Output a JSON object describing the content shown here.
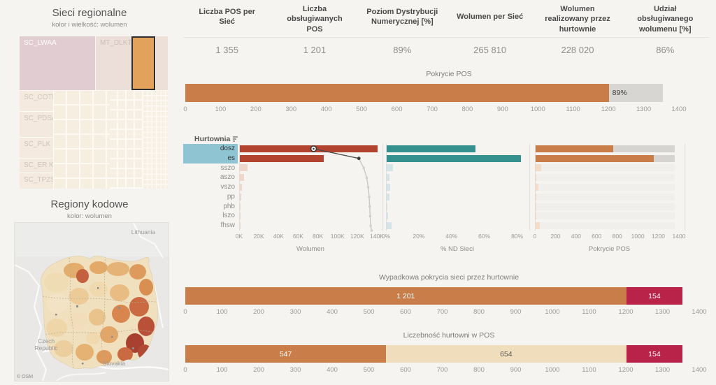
{
  "colors": {
    "orange": "#c97e4a",
    "pale_orange": "#f3ddc9",
    "dark_red": "#b2432f",
    "pale_red": "#f0d5cb",
    "teal": "#34918e",
    "pale_teal": "#d3e5e6",
    "crimson": "#ba2349",
    "beige": "#f0ddbb",
    "gray_segment": "#d8d6d3",
    "track_dark": "#d6d4d1",
    "track_light": "#f0efec",
    "highlight_blue": "#8fc5d2"
  },
  "treemap": {
    "title": "Sieci regionalne",
    "subtitle": "kolor i wielkość: wolumen",
    "cells": [
      {
        "label": "SC_LWAA",
        "color": "#e1ccd1",
        "text_color": "#ffffff"
      },
      {
        "label": "MT_DLKTS",
        "color": "#ecdfd9",
        "text_color": "#c9beb6"
      },
      {
        "label": "",
        "color": "#e3a25b",
        "text_color": "#000000",
        "highlighted": true
      },
      {
        "label": "SC_COTN",
        "color": "#f4eadf",
        "text_color": "#cfc5b8"
      },
      {
        "label": "SC_PDSA",
        "color": "#f3e9de",
        "text_color": "#cfc5b8"
      },
      {
        "label": "SC_PLK R",
        "color": "#f4eadf",
        "text_color": "#cfc5b8"
      },
      {
        "label": "SC_ER KE",
        "color": "#f3e9de",
        "text_color": "#cfc5b8"
      },
      {
        "label": "SC_TPZSK",
        "color": "#f4eadf",
        "text_color": "#cfc5b8"
      }
    ]
  },
  "map": {
    "title": "Regiony kodowe",
    "subtitle": "kolor: wolumen",
    "neighbor_labels": [
      "Lithuania",
      "Czech Republic",
      "Slovakia"
    ],
    "attribution": "© OSM"
  },
  "kpis": [
    {
      "label": "Liczba POS per Sieć",
      "value": "1 355"
    },
    {
      "label": "Liczba obsługiwanych POS",
      "value": "1 201"
    },
    {
      "label": "Poziom Dystrybucji Numerycznej [%]",
      "value": "89%"
    },
    {
      "label": "Wolumen per Sieć",
      "value": "265 810"
    },
    {
      "label": "Wolumen realizowany przez hurtownie",
      "value": "228 020"
    },
    {
      "label": "Udział obsługiwanego wolumenu [%]",
      "value": "86%"
    }
  ],
  "chart_data": [
    {
      "id": "pokrycie-pos-total",
      "type": "bar",
      "title": "Pokrycie POS",
      "axis": {
        "min": 0,
        "max": 1400,
        "step": 100
      },
      "total": 1355,
      "segments": [
        {
          "name": "pokryte",
          "value": 1201,
          "color": "#c97e4a"
        },
        {
          "name": "niepokryte",
          "value": 154,
          "color": "#d8d6d3",
          "label": "89%",
          "label_color": "#3f3f3f",
          "label_align": "left"
        }
      ]
    },
    {
      "id": "hurtownie",
      "type": "bar",
      "header": "Hurtownia",
      "categories": [
        "dosz",
        "es",
        "sszo",
        "aszo",
        "vszo",
        "pp",
        "phb",
        "lszo",
        "fhsw"
      ],
      "highlighted": [
        "dosz",
        "es"
      ],
      "panels": [
        {
          "title": "Wolumen",
          "scale_max": 145000,
          "axis_ticks": [
            {
              "v": 0,
              "t": "0K"
            },
            {
              "v": 20000,
              "t": "20K"
            },
            {
              "v": 40000,
              "t": "40K"
            },
            {
              "v": 60000,
              "t": "60K"
            },
            {
              "v": 80000,
              "t": "80K"
            },
            {
              "v": 100000,
              "t": "100K"
            },
            {
              "v": 120000,
              "t": "120K"
            },
            {
              "v": 140000,
              "t": "140K"
            }
          ],
          "values": [
            140000,
            85000,
            8000,
            4500,
            2000,
            1200,
            500,
            900,
            600
          ]
        },
        {
          "title": "% ND Sieci",
          "scale_max": 87,
          "axis_ticks": [
            {
              "v": 0,
              "t": "0%"
            },
            {
              "v": 20,
              "t": "20%"
            },
            {
              "v": 40,
              "t": "40%"
            },
            {
              "v": 60,
              "t": "60%"
            },
            {
              "v": 80,
              "t": "80%"
            }
          ],
          "values": [
            54,
            82,
            4,
            1.5,
            2,
            1.5,
            0.3,
            1,
            3
          ]
        },
        {
          "title": "Pokrycie POS",
          "scale_max": 1400,
          "track_value": 1355,
          "axis_ticks": [
            {
              "v": 0,
              "t": "0"
            },
            {
              "v": 200,
              "t": "200"
            },
            {
              "v": 400,
              "t": "400"
            },
            {
              "v": 600,
              "t": "600"
            },
            {
              "v": 800,
              "t": "800"
            },
            {
              "v": 1000,
              "t": "1000"
            },
            {
              "v": 1200,
              "t": "1200"
            },
            {
              "v": 1400,
              "t": "1400"
            }
          ],
          "values": [
            755,
            1146,
            55,
            10,
            25,
            10,
            3,
            2,
            40
          ]
        }
      ],
      "pareto_line_points_k": [
        75,
        121,
        126,
        129,
        130.5,
        131.5,
        132,
        132.5,
        133,
        134
      ]
    },
    {
      "id": "wypadkowa",
      "type": "bar",
      "title": "Wypadkowa pokrycia sieci przez hurtownie",
      "axis": {
        "min": 0,
        "max": 1400,
        "step": 100
      },
      "total": 1355,
      "segments": [
        {
          "name": "obsluzone",
          "value": 1201,
          "color": "#c97e4a",
          "label": "1 201",
          "label_color": "#ffffff"
        },
        {
          "name": "nieobsluzone",
          "value": 154,
          "color": "#ba2349",
          "label": "154",
          "label_color": "#ffffff"
        }
      ]
    },
    {
      "id": "liczebnosc",
      "type": "bar",
      "title": "Liczebność hurtowni w POS",
      "axis": {
        "min": 0,
        "max": 1400,
        "step": 100
      },
      "total": 1355,
      "segments": [
        {
          "name": "wielu-hurtownikow",
          "value": 547,
          "color": "#c97e4a",
          "label": "547",
          "label_color": "#ffffff"
        },
        {
          "name": "jeden-hurtownik",
          "value": 654,
          "color": "#f0ddbb",
          "label": "654",
          "label_color": "#5a5a5a"
        },
        {
          "name": "brak",
          "value": 154,
          "color": "#ba2349",
          "label": "154",
          "label_color": "#ffffff"
        }
      ]
    }
  ]
}
